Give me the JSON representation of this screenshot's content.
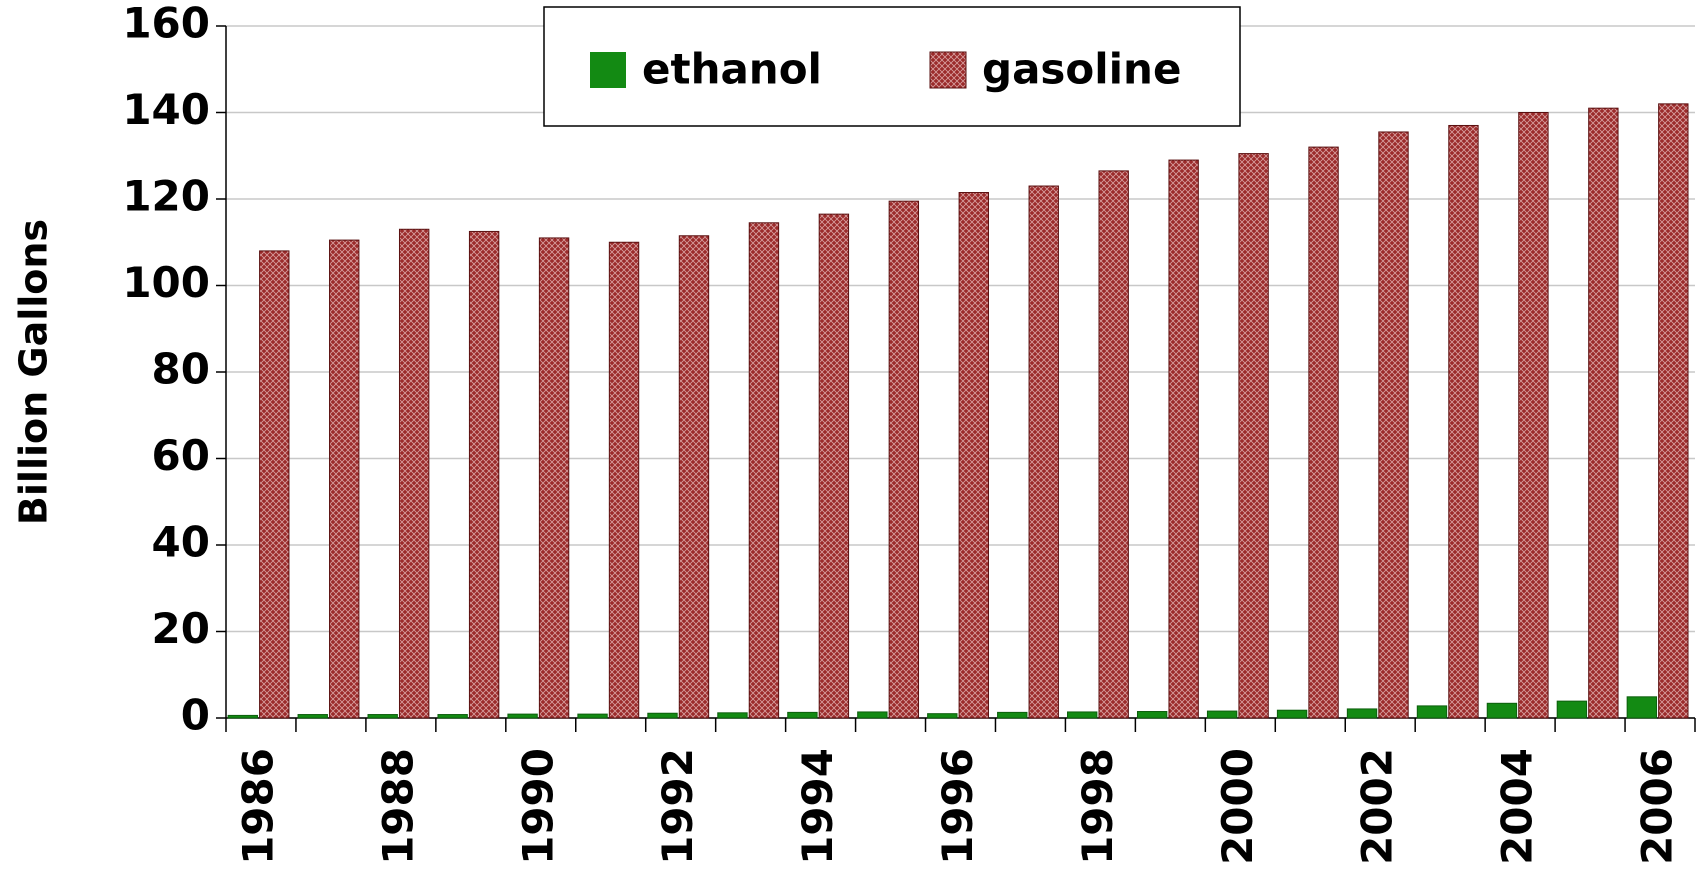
{
  "chart_data": {
    "type": "bar",
    "y_label": "Billion Gallons",
    "categories": [
      "1986",
      null,
      "1988",
      null,
      "1990",
      null,
      "1992",
      null,
      "1994",
      null,
      "1996",
      null,
      "1998",
      null,
      "2000",
      null,
      "2002",
      null,
      "2004",
      null,
      "2006"
    ],
    "series": [
      {
        "name": "ethanol",
        "color": "#138a13",
        "values": [
          0.6,
          0.8,
          0.8,
          0.8,
          0.9,
          0.9,
          1.1,
          1.2,
          1.3,
          1.4,
          1.0,
          1.3,
          1.4,
          1.5,
          1.6,
          1.8,
          2.1,
          2.8,
          3.4,
          3.9,
          4.9
        ]
      },
      {
        "name": "gasoline",
        "color": "#9b2b2b",
        "values": [
          108,
          110.5,
          113,
          112.5,
          111,
          110,
          111.5,
          114.5,
          116.5,
          119.5,
          121.5,
          123,
          126.5,
          129,
          130.5,
          132,
          135.5,
          137,
          140,
          141,
          142
        ]
      }
    ],
    "ylim": [
      0,
      160
    ],
    "yticks": [
      0,
      20,
      40,
      60,
      80,
      100,
      120,
      140,
      160
    ],
    "grid": true,
    "legend": "top"
  }
}
